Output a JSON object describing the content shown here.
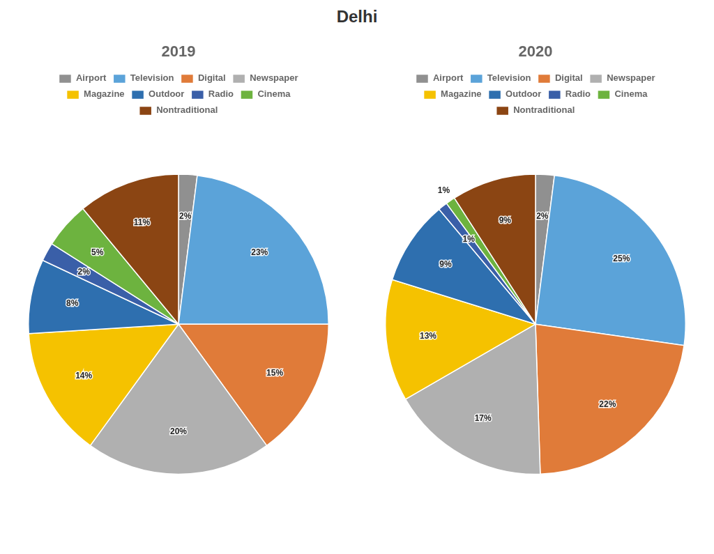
{
  "chart_data": {
    "type": "pie",
    "title": "Delhi",
    "categories": [
      "Airport",
      "Television",
      "Digital",
      "Newspaper",
      "Magazine",
      "Outdoor",
      "Radio",
      "Cinema",
      "Nontraditional"
    ],
    "colors": [
      "#909090",
      "#5BA3D9",
      "#E07B39",
      "#B0B0B0",
      "#F5C200",
      "#2E6FAF",
      "#3A5FA8",
      "#6DB33F",
      "#8B4513"
    ],
    "legend": "top",
    "data_labels": true,
    "series": [
      {
        "name": "2019",
        "values": [
          2,
          23,
          15,
          20,
          14,
          8,
          2,
          5,
          11
        ],
        "value_labels": [
          "2%",
          "23%",
          "15%",
          "20%",
          "14%",
          "8%",
          "2%",
          "5%",
          "11%"
        ]
      },
      {
        "name": "2020",
        "values": [
          2,
          25,
          22,
          17,
          13,
          9,
          1,
          1,
          9
        ],
        "value_labels": [
          "2%",
          "25%",
          "22%",
          "17%",
          "13%",
          "9%",
          "1%",
          "1%",
          "9%"
        ]
      }
    ]
  }
}
